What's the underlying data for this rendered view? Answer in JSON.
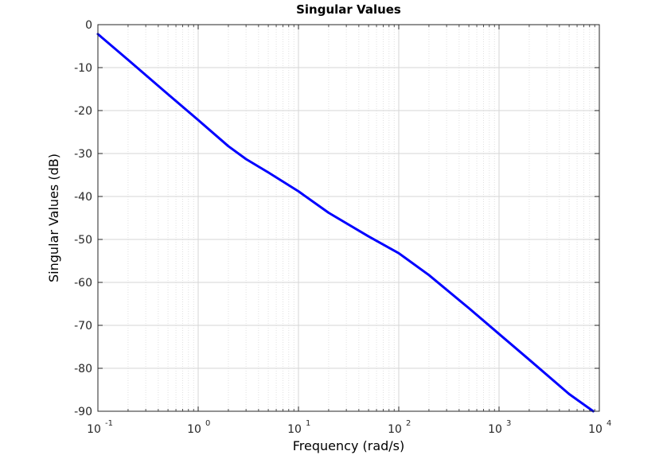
{
  "chart_data": {
    "type": "line",
    "title": "Singular Values",
    "xlabel": "Frequency (rad/s)",
    "ylabel": "Singular Values (dB)",
    "xscale": "log",
    "xlim": [
      0.1,
      10000
    ],
    "ylim": [
      -90,
      0
    ],
    "x_ticks": [
      {
        "base": "10",
        "exp": "-1"
      },
      {
        "base": "10",
        "exp": "0"
      },
      {
        "base": "10",
        "exp": "1"
      },
      {
        "base": "10",
        "exp": "2"
      },
      {
        "base": "10",
        "exp": "3"
      },
      {
        "base": "10",
        "exp": "4"
      }
    ],
    "y_ticks": [
      "0",
      "-10",
      "-20",
      "-30",
      "-40",
      "-50",
      "-60",
      "-70",
      "-80",
      "-90"
    ],
    "grid": true,
    "minor_grid": true,
    "series": [
      {
        "color": "#0000ff",
        "x": [
          0.1,
          0.2,
          0.5,
          1,
          2,
          3,
          5,
          10,
          20,
          50,
          100,
          200,
          500,
          1000,
          2000,
          5000,
          8700
        ],
        "y": [
          -2.2,
          -8.2,
          -16.2,
          -22.2,
          -28.3,
          -31.3,
          -34.4,
          -38.8,
          -43.8,
          -49.3,
          -53.2,
          -58.3,
          -66.0,
          -72.0,
          -78.0,
          -86.0,
          -90.0
        ]
      }
    ]
  }
}
